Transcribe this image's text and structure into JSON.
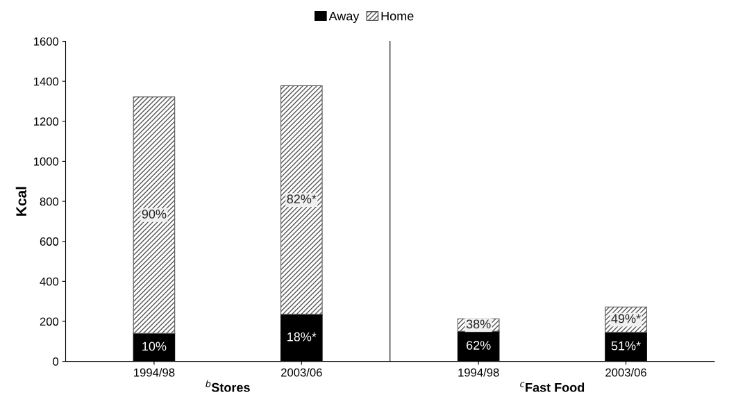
{
  "chart_data": [
    {
      "type": "bar",
      "stacked": true,
      "xlabel": "$^{b}$Stores",
      "ylabel": "Kcal",
      "categories": [
        "1994/98",
        "2003/06"
      ],
      "ylim": [
        0,
        1600
      ],
      "yticks": [
        0,
        200,
        400,
        600,
        800,
        1000,
        1200,
        1400,
        1600
      ],
      "legend": "top",
      "grid": false,
      "series": [
        {
          "name": "Away",
          "color": "#000000",
          "values": [
            140,
            235
          ]
        },
        {
          "name": "Home",
          "color": "#555555",
          "values": [
            1182,
            1143
          ]
        }
      ],
      "annotations": [
        "10%",
        "18%*",
        "90%",
        "82%*"
      ]
    },
    {
      "type": "bar",
      "stacked": true,
      "xlabel": "$^{c}$Fast Food",
      "categories": [
        "1994/98",
        "2003/06"
      ],
      "ylim": [
        0,
        1600
      ],
      "tick_labels": "x",
      "grid": false,
      "series": [
        {
          "color": "#000000",
          "values": [
            150,
            145
          ]
        },
        {
          "color": "#555555",
          "values": [
            63,
            127
          ]
        }
      ],
      "annotations": [
        "62%",
        "51%*",
        "38%",
        "49%*"
      ]
    }
  ]
}
